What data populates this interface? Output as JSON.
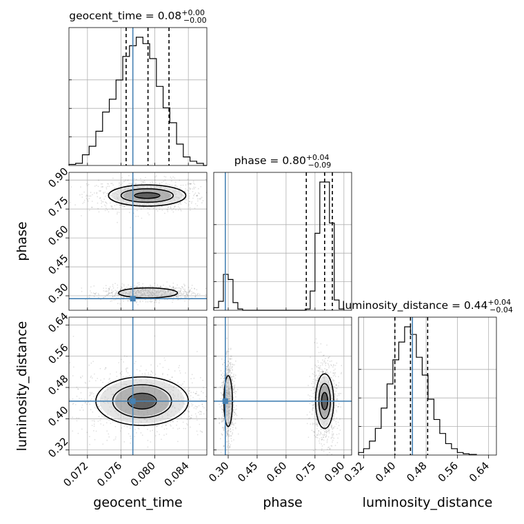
{
  "chart_data": {
    "type": "corner",
    "parameters": [
      "geocent_time",
      "phase",
      "luminosity_distance"
    ],
    "titles": [
      {
        "param": "geocent_time",
        "median": "0.08",
        "plus": "+0.00",
        "minus": "−0.00"
      },
      {
        "param": "phase",
        "median": "0.80",
        "plus": "+0.04",
        "minus": "−0.09"
      },
      {
        "param": "luminosity_distance",
        "median": "0.44",
        "plus": "+0.04",
        "minus": "−0.04"
      }
    ],
    "axes": {
      "geocent_time": {
        "range": [
          0.0698,
          0.0862
        ],
        "ticks": [
          "0.072",
          "0.076",
          "0.080",
          "0.084"
        ]
      },
      "phase": {
        "range": [
          0.225,
          0.94
        ],
        "ticks": [
          "0.30",
          "0.45",
          "0.60",
          "0.75",
          "0.90"
        ]
      },
      "luminosity_distance": {
        "range": [
          0.307,
          0.66
        ],
        "ticks": [
          "0.32",
          "0.40",
          "0.48",
          "0.56",
          "0.64"
        ]
      }
    },
    "truths": {
      "geocent_time": 0.0774,
      "phase": 0.285,
      "luminosity_distance": 0.445
    },
    "quantiles": {
      "geocent_time": [
        0.0766,
        0.0792,
        0.0817
      ],
      "phase": [
        0.705,
        0.8,
        0.84
      ],
      "luminosity_distance": [
        0.4,
        0.44,
        0.484
      ]
    },
    "histograms": {
      "geocent_time": {
        "bin_edges": [
          0.0698,
          0.0706,
          0.0714,
          0.0722,
          0.073,
          0.0738,
          0.0746,
          0.0754,
          0.0762,
          0.077,
          0.0778,
          0.0786,
          0.0794,
          0.0802,
          0.081,
          0.0818,
          0.0826,
          0.0834,
          0.0842,
          0.085,
          0.0858,
          0.0862
        ],
        "counts": [
          0.5,
          1,
          5,
          9,
          16,
          25,
          31,
          40,
          51,
          56,
          60,
          57,
          50,
          37,
          27,
          20,
          10,
          4,
          2,
          1,
          0
        ]
      },
      "phase": {
        "bin_edges": [
          0.225,
          0.25,
          0.275,
          0.3,
          0.325,
          0.35,
          0.375,
          0.4,
          0.7,
          0.725,
          0.75,
          0.775,
          0.8,
          0.825,
          0.85,
          0.875,
          0.9
        ],
        "counts": [
          2,
          7,
          28,
          24,
          6,
          1,
          0,
          0,
          1,
          15,
          60,
          100,
          100,
          68,
          8,
          1,
          0
        ]
      },
      "luminosity_distance": {
        "bin_edges": [
          0.307,
          0.32,
          0.335,
          0.35,
          0.365,
          0.38,
          0.395,
          0.41,
          0.425,
          0.44,
          0.455,
          0.47,
          0.485,
          0.5,
          0.515,
          0.53,
          0.545,
          0.56,
          0.575,
          0.59,
          0.61
        ],
        "counts": [
          2,
          5,
          11,
          21,
          37,
          56,
          75,
          89,
          101,
          95,
          77,
          63,
          44,
          28,
          17,
          9,
          5,
          2,
          1,
          0.5
        ]
      }
    },
    "contours_2d": [
      {
        "x": "geocent_time",
        "y": "phase",
        "center": [
          0.0791,
          0.82
        ],
        "radii": [
          [
            0.0046,
            0.055
          ],
          [
            0.0031,
            0.035
          ],
          [
            0.0015,
            0.015
          ]
        ]
      },
      {
        "x": "geocent_time",
        "y": "phase",
        "center": [
          0.0792,
          0.315
        ],
        "radii": [
          [
            0.0035,
            0.026
          ]
        ]
      },
      {
        "x": "geocent_time",
        "y": "luminosity_distance",
        "center": [
          0.0785,
          0.445
        ],
        "radii": [
          [
            0.0055,
            0.062
          ],
          [
            0.0035,
            0.042
          ],
          [
            0.0017,
            0.02
          ]
        ]
      },
      {
        "x": "phase",
        "y": "luminosity_distance",
        "center": [
          0.3,
          0.445
        ],
        "radii": [
          [
            0.022,
            0.065
          ]
        ]
      },
      {
        "x": "phase",
        "y": "luminosity_distance",
        "center": [
          0.8,
          0.445
        ],
        "radii": [
          [
            0.047,
            0.07
          ],
          [
            0.03,
            0.045
          ],
          [
            0.016,
            0.022
          ]
        ]
      }
    ],
    "grid": true
  }
}
